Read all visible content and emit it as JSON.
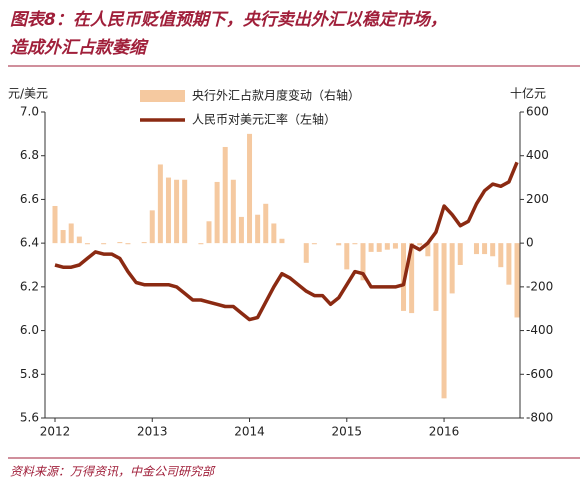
{
  "chart_data": {
    "type": "bar-line",
    "title": [
      "图表8：在人民币贬值预期下，央行卖出外汇以稳定市场，",
      "造成外汇占款萎缩"
    ],
    "ylabel": "元/美元",
    "y2label": "十亿元",
    "source": "资料来源：万得资讯，中金公司研究部",
    "categories": [
      "2012",
      null,
      null,
      null,
      null,
      null,
      null,
      null,
      null,
      null,
      null,
      null,
      "2013",
      null,
      null,
      null,
      null,
      null,
      null,
      null,
      null,
      null,
      null,
      null,
      "2014",
      null,
      null,
      null,
      null,
      null,
      null,
      null,
      null,
      null,
      null,
      null,
      "2015",
      null,
      null,
      null,
      null,
      null,
      null,
      null,
      null,
      null,
      null,
      null,
      "2016",
      null,
      null,
      null,
      null,
      null,
      null,
      null,
      null,
      null
    ],
    "series": [
      {
        "name": "央行外汇占款月度变动（右轴）",
        "type": "bar",
        "axis": "y2",
        "color": "#f5c9a0",
        "values": [
          170,
          60,
          90,
          30,
          -5,
          0,
          -5,
          0,
          5,
          -5,
          0,
          5,
          150,
          360,
          300,
          290,
          290,
          0,
          -5,
          100,
          280,
          440,
          290,
          120,
          500,
          130,
          180,
          90,
          20,
          0,
          0,
          -90,
          -5,
          0,
          0,
          -10,
          -120,
          -5,
          -170,
          -40,
          -40,
          -30,
          -25,
          -310,
          -320,
          -10,
          -60,
          -310,
          -710,
          -230,
          -100,
          0,
          -50,
          -50,
          -60,
          -110,
          -190,
          -340
        ]
      },
      {
        "name": "人民币对美元汇率（左轴）",
        "type": "line",
        "axis": "y",
        "color": "#8b2a12",
        "values": [
          6.3,
          6.29,
          6.29,
          6.3,
          6.33,
          6.36,
          6.35,
          6.35,
          6.33,
          6.27,
          6.22,
          6.21,
          6.21,
          6.21,
          6.21,
          6.2,
          6.17,
          6.14,
          6.14,
          6.13,
          6.12,
          6.11,
          6.11,
          6.08,
          6.05,
          6.06,
          6.13,
          6.2,
          6.26,
          6.24,
          6.21,
          6.18,
          6.16,
          6.16,
          6.12,
          6.15,
          6.21,
          6.27,
          6.26,
          6.2,
          6.2,
          6.2,
          6.2,
          6.21,
          6.39,
          6.37,
          6.4,
          6.45,
          6.57,
          6.53,
          6.48,
          6.5,
          6.58,
          6.64,
          6.67,
          6.66,
          6.68,
          6.77
        ]
      }
    ],
    "ylim": [
      5.6,
      7.0
    ],
    "yticks": [
      5.6,
      5.8,
      {
        "value": 6,
        "label": "6.0"
      },
      6.2,
      6.4,
      6.6,
      6.8,
      {
        "value": 7,
        "label": "7.0"
      }
    ],
    "y2lim": [
      -800,
      600
    ],
    "y2ticks": [
      -800,
      -600,
      -400,
      -200,
      0,
      200,
      400,
      600
    ]
  }
}
